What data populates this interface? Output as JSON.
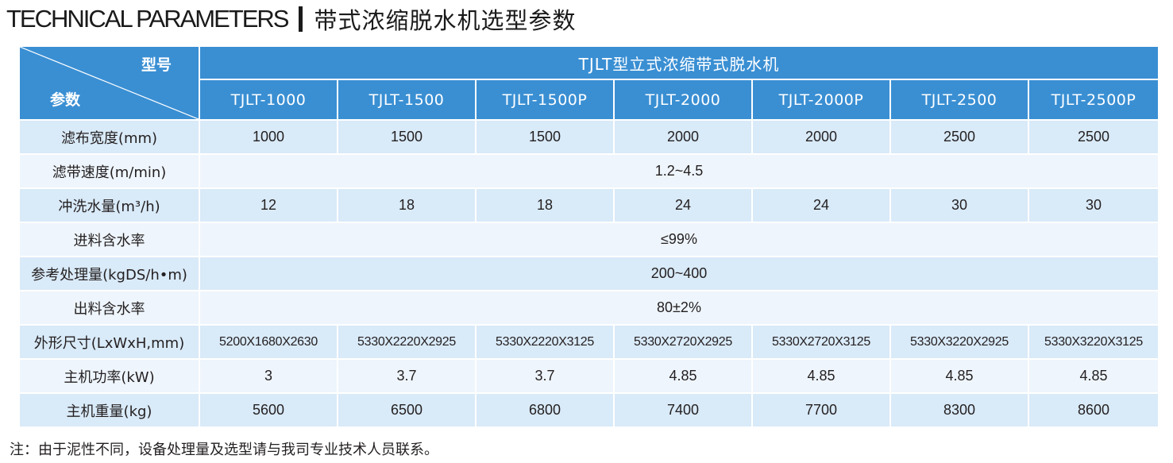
{
  "title": {
    "english": "TECHNICAL PARAMETERS",
    "chinese": "带式浓缩脱水机选型参数"
  },
  "table": {
    "corner_model": "型号",
    "corner_param": "参数",
    "series_name": "TJLT型立式浓缩带式脱水机",
    "models": [
      "TJLT-1000",
      "TJLT-1500",
      "TJLT-1500P",
      "TJLT-2000",
      "TJLT-2000P",
      "TJLT-2500",
      "TJLT-2500P"
    ],
    "rows": [
      {
        "label": "滤布宽度(mm)",
        "values": [
          "1000",
          "1500",
          "1500",
          "2000",
          "2000",
          "2500",
          "2500"
        ]
      },
      {
        "label": "滤带速度(m/min)",
        "merged": "1.2~4.5"
      },
      {
        "label": "冲洗水量(m³/h)",
        "values": [
          "12",
          "18",
          "18",
          "24",
          "24",
          "30",
          "30"
        ]
      },
      {
        "label": "进料含水率",
        "merged": "≤99%"
      },
      {
        "label": "参考处理量(kgDS/h•m)",
        "merged": "200~400"
      },
      {
        "label": "出料含水率",
        "merged": "80±2%"
      },
      {
        "label": "外形尺寸(LxWxH,mm)",
        "values": [
          "5200X1680X2630",
          "5330X2220X2925",
          "5330X2220X3125",
          "5330X2720X2925",
          "5330X2720X3125",
          "5330X3220X2925",
          "5330X3220X3125"
        ]
      },
      {
        "label": "主机功率(kW)",
        "values": [
          "3",
          "3.7",
          "3.7",
          "4.85",
          "4.85",
          "4.85",
          "4.85"
        ]
      },
      {
        "label": "主机重量(kg)",
        "values": [
          "5600",
          "6500",
          "6800",
          "7400",
          "7700",
          "8300",
          "8600"
        ]
      }
    ]
  },
  "note": "注：由于泥性不同，设备处理量及选型请与我司专业技术人员联系。",
  "colors": {
    "header_blue": "#3a8fd3",
    "row_dark": "#d9eaf8",
    "row_light": "#eef5fc"
  }
}
